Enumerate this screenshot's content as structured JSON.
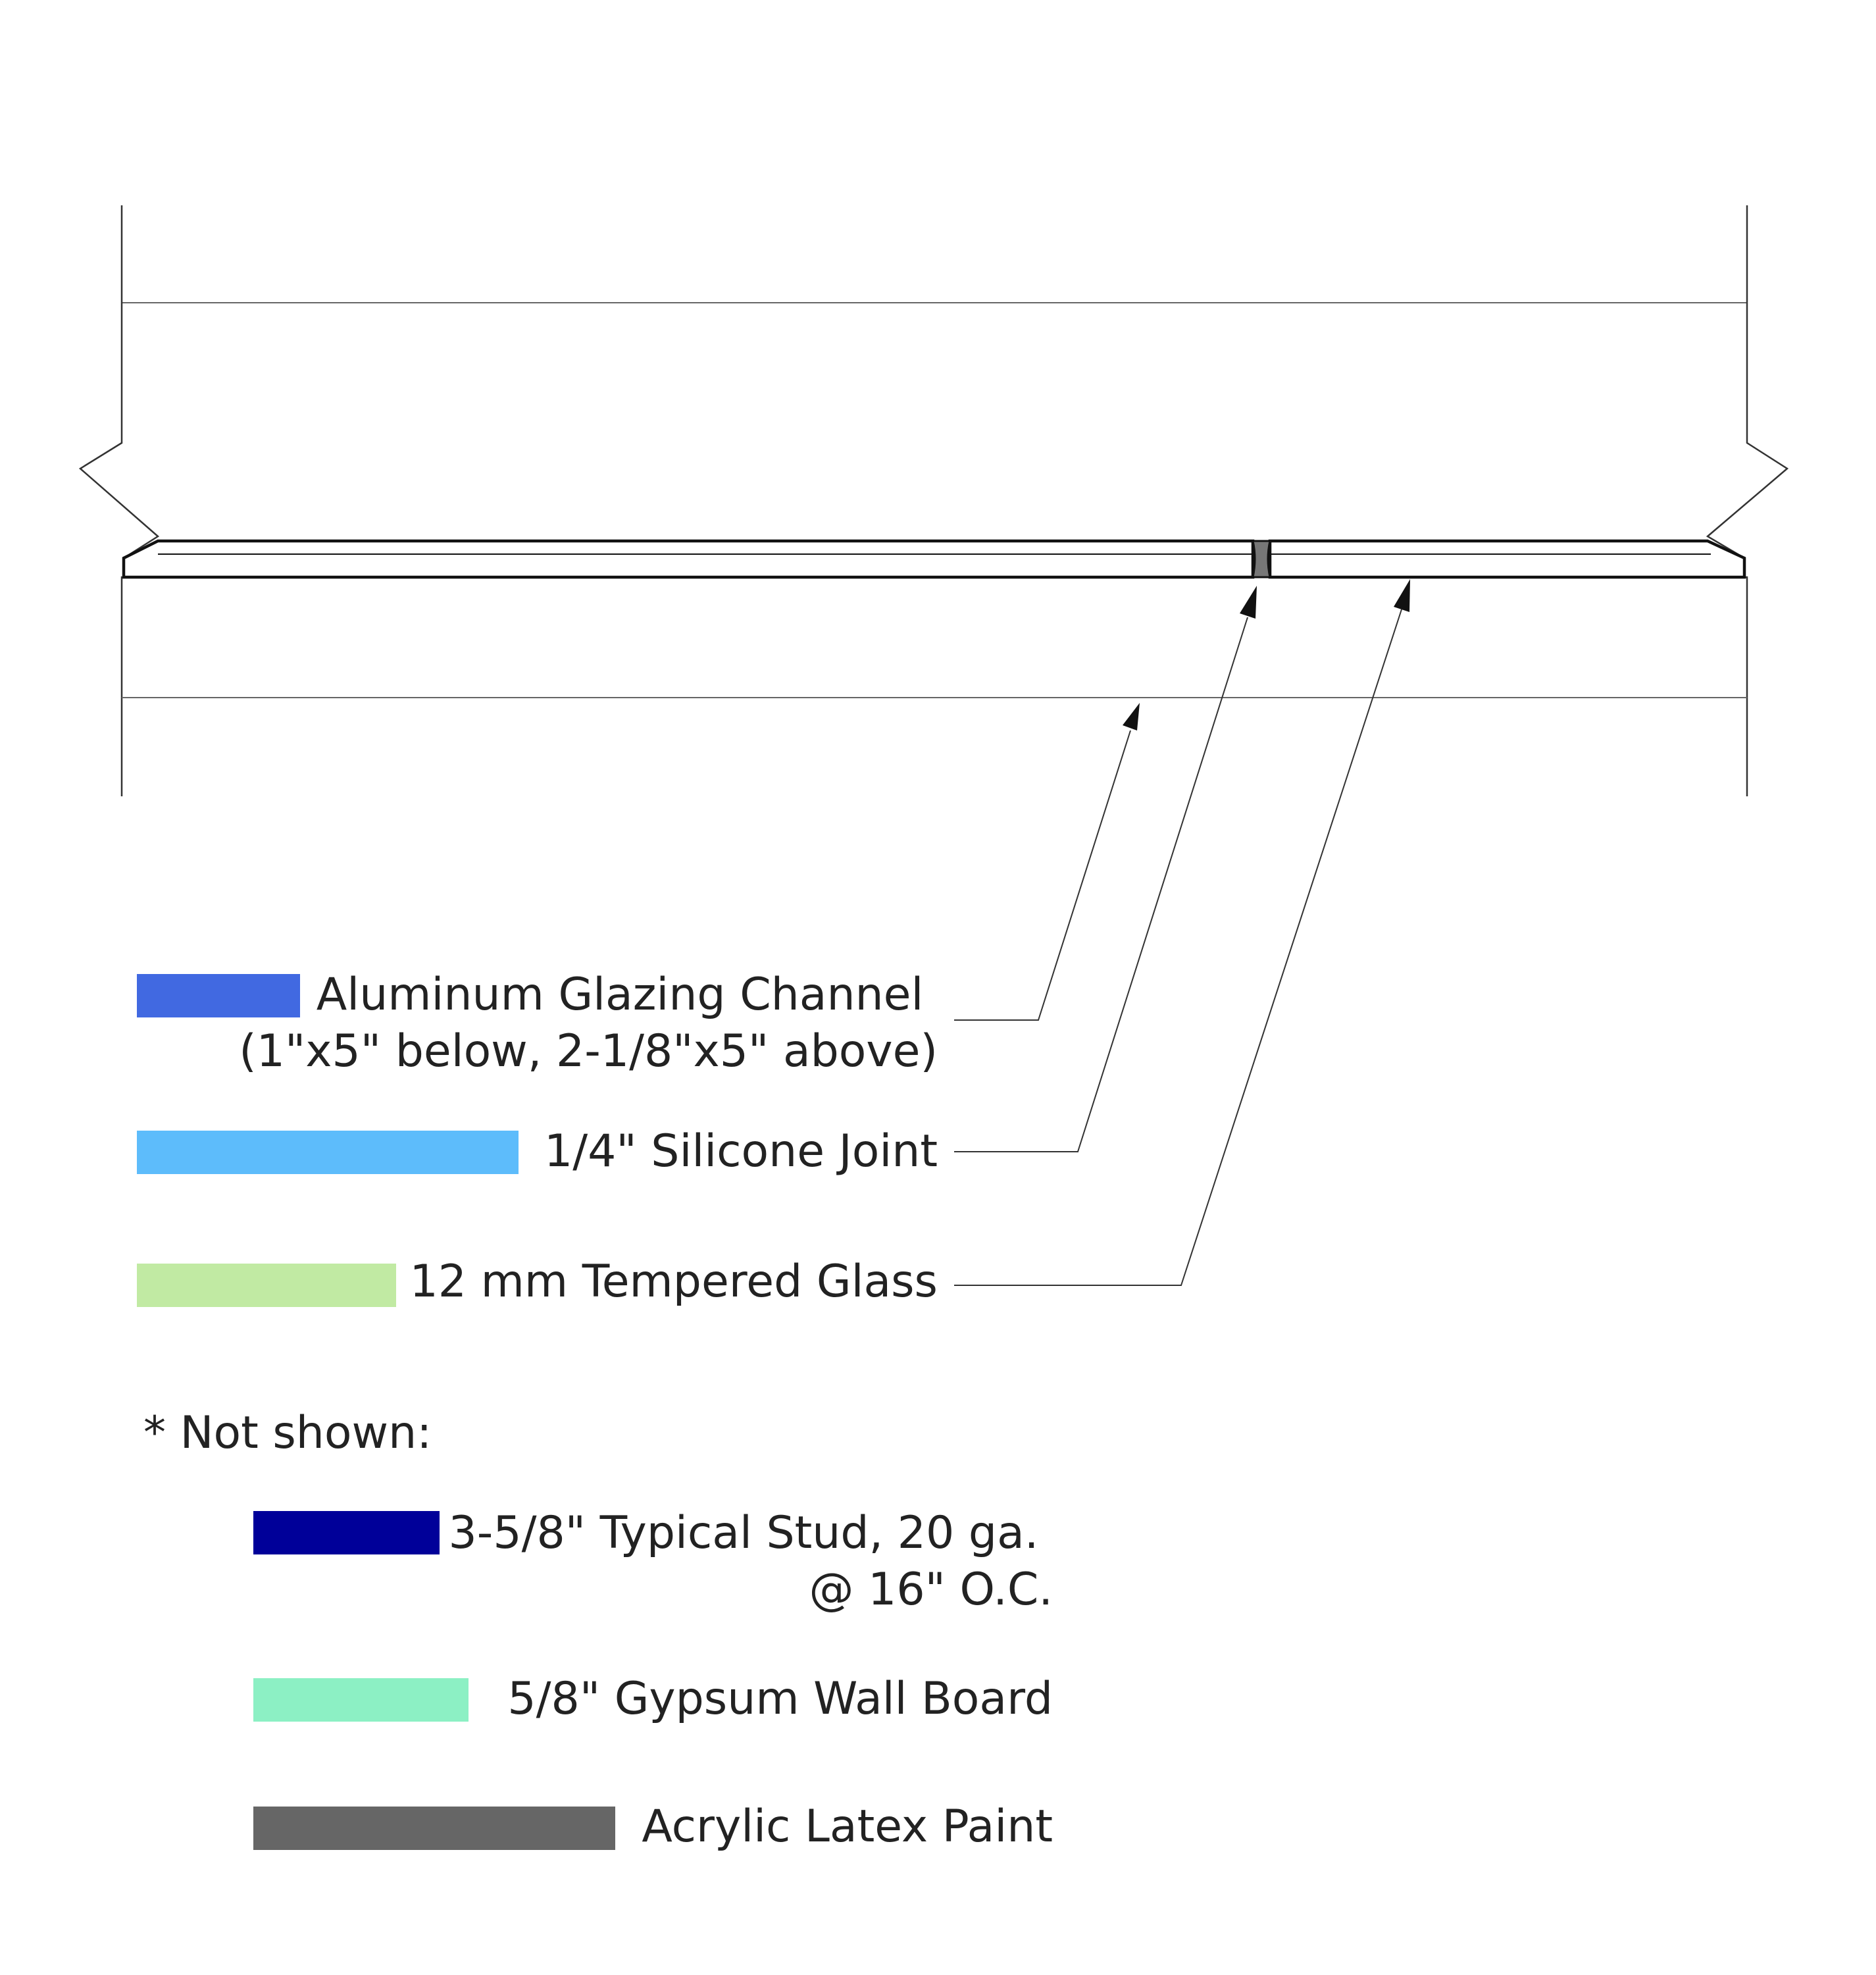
{
  "diagram": {
    "elements": [
      {
        "id": "channel",
        "label_lines": [
          "Aluminum Glazing Channel",
          "(1\"x5\" below, 2-1/8\"x5\" above)"
        ],
        "color": "#4169E1",
        "swatch_fraction": 0.45
      },
      {
        "id": "silicone",
        "label_lines": [
          "1/4\" Silicone Joint"
        ],
        "color": "#5DBCFB",
        "swatch_fraction": 1.0
      },
      {
        "id": "glass",
        "label_lines": [
          "12 mm Tempered Glass"
        ],
        "color": "#C1EAA3",
        "swatch_fraction": 0.68
      }
    ],
    "not_shown_heading": "* Not shown:",
    "not_shown": [
      {
        "id": "stud",
        "label_lines": [
          "3-5/8\" Typical Stud, 20 ga.",
          "@ 16\" O.C."
        ],
        "color": "#000099",
        "swatch_fraction": 0.52
      },
      {
        "id": "gypsum",
        "label_lines": [
          "5/8\" Gypsum Wall Board"
        ],
        "color": "#8CF0C4",
        "swatch_fraction": 0.6
      },
      {
        "id": "paint",
        "label_lines": [
          "Acrylic Latex Paint"
        ],
        "color": "#666666",
        "swatch_fraction": 1.0
      }
    ],
    "colors": {
      "line": "#222222",
      "joint_fill": "#777777"
    }
  }
}
